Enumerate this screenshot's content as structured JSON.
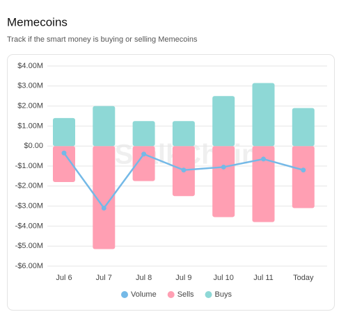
{
  "chart_data": {
    "type": "bar",
    "title": "Memecoins",
    "subtitle": "Track if the smart money is buying or selling Memecoins",
    "watermark": "StalkChain",
    "categories": [
      "Jul 6",
      "Jul 7",
      "Jul 8",
      "Jul 9",
      "Jul 10",
      "Jul 11",
      "Today"
    ],
    "series": [
      {
        "name": "Volume",
        "type": "line",
        "color": "#74b9e7",
        "values": [
          -350000,
          -3100000,
          -400000,
          -1200000,
          -1050000,
          -650000,
          -1200000
        ]
      },
      {
        "name": "Sells",
        "type": "bar",
        "color": "#ff9fb3",
        "values": [
          -1800000,
          -5150000,
          -1750000,
          -2500000,
          -3550000,
          -3800000,
          -3100000
        ]
      },
      {
        "name": "Buys",
        "type": "bar",
        "color": "#8ed8d6",
        "values": [
          1400000,
          2000000,
          1250000,
          1250000,
          2500000,
          3150000,
          1900000
        ]
      }
    ],
    "ylim": [
      -6000000,
      4000000
    ],
    "yticks": [
      {
        "value": 4000000,
        "label": "$4.00M"
      },
      {
        "value": 3000000,
        "label": "$3.00M"
      },
      {
        "value": 2000000,
        "label": "$2.00M"
      },
      {
        "value": 1000000,
        "label": "$1.00M"
      },
      {
        "value": 0,
        "label": "$0.00"
      },
      {
        "value": -1000000,
        "label": "-$1.00M"
      },
      {
        "value": -2000000,
        "label": "-$2.00M"
      },
      {
        "value": -3000000,
        "label": "-$3.00M"
      },
      {
        "value": -4000000,
        "label": "-$4.00M"
      },
      {
        "value": -5000000,
        "label": "-$5.00M"
      },
      {
        "value": -6000000,
        "label": "-$6.00M"
      }
    ],
    "grid": true
  }
}
